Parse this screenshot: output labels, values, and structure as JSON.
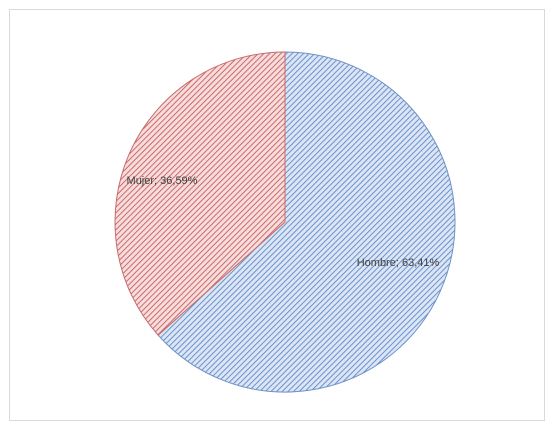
{
  "chart_data": {
    "type": "pie",
    "categories": [
      "Hombre",
      "Mujer"
    ],
    "values": [
      63.41,
      36.59
    ],
    "data_labels": [
      "Hombre; 63,41%",
      "Mujer; 36,59%"
    ],
    "title": "",
    "legend": "none",
    "colors": {
      "Hombre": {
        "fill": "#8eaadb",
        "hatch": "#4472c4"
      },
      "Mujer": {
        "fill": "#f4b183",
        "hatch": "#c0504d"
      }
    },
    "pattern": "diagonal-hatch"
  }
}
